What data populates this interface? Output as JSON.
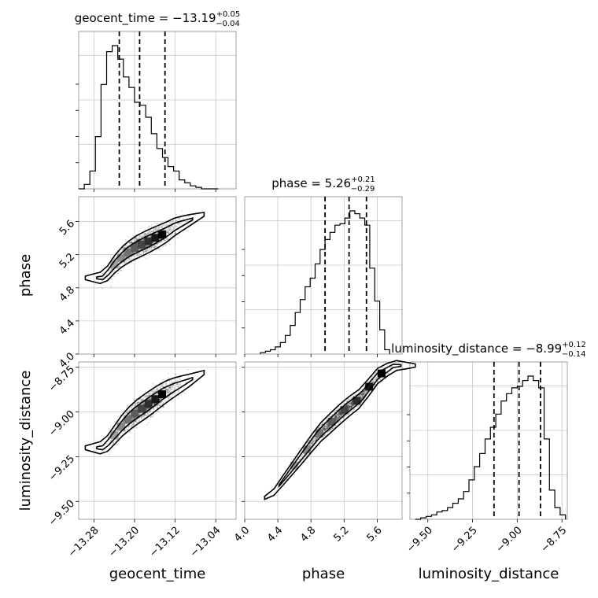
{
  "chart_data": {
    "type": "corner",
    "parameters": [
      "geocent_time",
      "phase",
      "luminosity_distance"
    ],
    "titles": [
      {
        "name": "geocent_time",
        "value": "−13.19",
        "plus": "+0.05",
        "minus": "−0.04"
      },
      {
        "name": "phase",
        "value": "5.26",
        "plus": "+0.21",
        "minus": "−0.29"
      },
      {
        "name": "luminosity_distance",
        "value": "−8.99",
        "plus": "+0.12",
        "minus": "−0.14"
      }
    ],
    "ranges": {
      "geocent_time": [
        -13.31,
        -13.0
      ],
      "phase": [
        4.0,
        5.9
      ],
      "luminosity_distance": [
        -9.6,
        -8.72
      ]
    },
    "ticks": {
      "geocent_time": [
        -13.28,
        -13.2,
        -13.12,
        -13.04
      ],
      "phase": [
        4.0,
        4.4,
        4.8,
        5.2,
        5.6
      ],
      "luminosity_distance": [
        -9.5,
        -9.25,
        -9.0,
        -8.75
      ]
    },
    "tick_labels": {
      "geocent_time": [
        "−13.28",
        "−13.20",
        "−13.12",
        "−13.04"
      ],
      "phase": [
        "4.0",
        "4.4",
        "4.8",
        "5.2",
        "5.6"
      ],
      "luminosity_distance": [
        "−9.50",
        "−9.25",
        "−9.00",
        "−8.75"
      ]
    },
    "quantiles": {
      "geocent_time": [
        -13.23,
        -13.19,
        -13.14
      ],
      "phase": [
        4.97,
        5.26,
        5.47
      ],
      "luminosity_distance": [
        -9.13,
        -8.99,
        -8.87
      ]
    },
    "histograms": {
      "geocent_time": {
        "edges": [
          -13.31,
          -13.299,
          -13.288,
          -13.277,
          -13.266,
          -13.255,
          -13.244,
          -13.233,
          -13.222,
          -13.211,
          -13.2,
          -13.189,
          -13.178,
          -13.167,
          -13.156,
          -13.145,
          -13.134,
          -13.123,
          -13.112,
          -13.101,
          -13.09,
          -13.079,
          -13.068,
          -13.057,
          -13.046,
          -13.035
        ],
        "counts": [
          0,
          3,
          12,
          35,
          70,
          92,
          96,
          87,
          75,
          68,
          58,
          56,
          48,
          37,
          27,
          21,
          15,
          12,
          6,
          4,
          2,
          1,
          0,
          0,
          0
        ]
      },
      "phase": {
        "edges": [
          4.19,
          4.25,
          4.31,
          4.37,
          4.43,
          4.49,
          4.55,
          4.61,
          4.67,
          4.73,
          4.79,
          4.85,
          4.91,
          4.97,
          5.03,
          5.09,
          5.15,
          5.21,
          5.27,
          5.33,
          5.39,
          5.45,
          5.51,
          5.57,
          5.63,
          5.69,
          5.75
        ],
        "counts": [
          1,
          2,
          3,
          5,
          8,
          13,
          20,
          29,
          38,
          47,
          53,
          63,
          73,
          80,
          85,
          90,
          91,
          95,
          100,
          98,
          95,
          90,
          60,
          37,
          17,
          3
        ]
      },
      "luminosity_distance": {
        "edges": [
          -9.57,
          -9.54,
          -9.51,
          -9.48,
          -9.45,
          -9.42,
          -9.39,
          -9.36,
          -9.33,
          -9.3,
          -9.27,
          -9.24,
          -9.21,
          -9.18,
          -9.15,
          -9.12,
          -9.09,
          -9.06,
          -9.03,
          -9.0,
          -8.97,
          -8.94,
          -8.91,
          -8.88,
          -8.85,
          -8.82,
          -8.79,
          -8.76,
          -8.73
        ],
        "counts": [
          0,
          1,
          2,
          3,
          5,
          6,
          8,
          11,
          14,
          19,
          27,
          36,
          45,
          55,
          63,
          72,
          81,
          86,
          90,
          91,
          95,
          98,
          95,
          90,
          55,
          20,
          8,
          3
        ]
      }
    },
    "correlations": {
      "phase_vs_geocent_time": {
        "ridge": [
          [
            -13.26,
            4.92
          ],
          [
            -13.24,
            5.08
          ],
          [
            -13.22,
            5.2
          ],
          [
            -13.2,
            5.28
          ],
          [
            -13.18,
            5.34
          ],
          [
            -13.16,
            5.4
          ],
          [
            -13.14,
            5.46
          ],
          [
            -13.12,
            5.54
          ],
          [
            -13.09,
            5.62
          ],
          [
            -13.05,
            5.72
          ]
        ],
        "peak": [
          -13.17,
          5.38
        ],
        "spread_phase": 0.14
      },
      "luminosity_distance_vs_geocent_time": {
        "ridge": [
          [
            -13.26,
            -9.2
          ],
          [
            -13.24,
            -9.13
          ],
          [
            -13.22,
            -9.06
          ],
          [
            -13.2,
            -9.01
          ],
          [
            -13.18,
            -8.97
          ],
          [
            -13.16,
            -8.93
          ],
          [
            -13.14,
            -8.89
          ],
          [
            -13.12,
            -8.86
          ],
          [
            -13.09,
            -8.82
          ],
          [
            -13.05,
            -8.76
          ]
        ],
        "peak": [
          -13.17,
          -8.95
        ],
        "spread_distance": 0.05
      },
      "luminosity_distance_vs_phase": {
        "ridge": [
          [
            4.3,
            -9.48
          ],
          [
            4.6,
            -9.3
          ],
          [
            4.9,
            -9.12
          ],
          [
            5.2,
            -8.99
          ],
          [
            5.4,
            -8.92
          ],
          [
            5.6,
            -8.8
          ],
          [
            5.8,
            -8.74
          ]
        ],
        "peak": [
          5.38,
          -8.92
        ],
        "spread_distance": 0.03
      }
    },
    "grid": true
  }
}
